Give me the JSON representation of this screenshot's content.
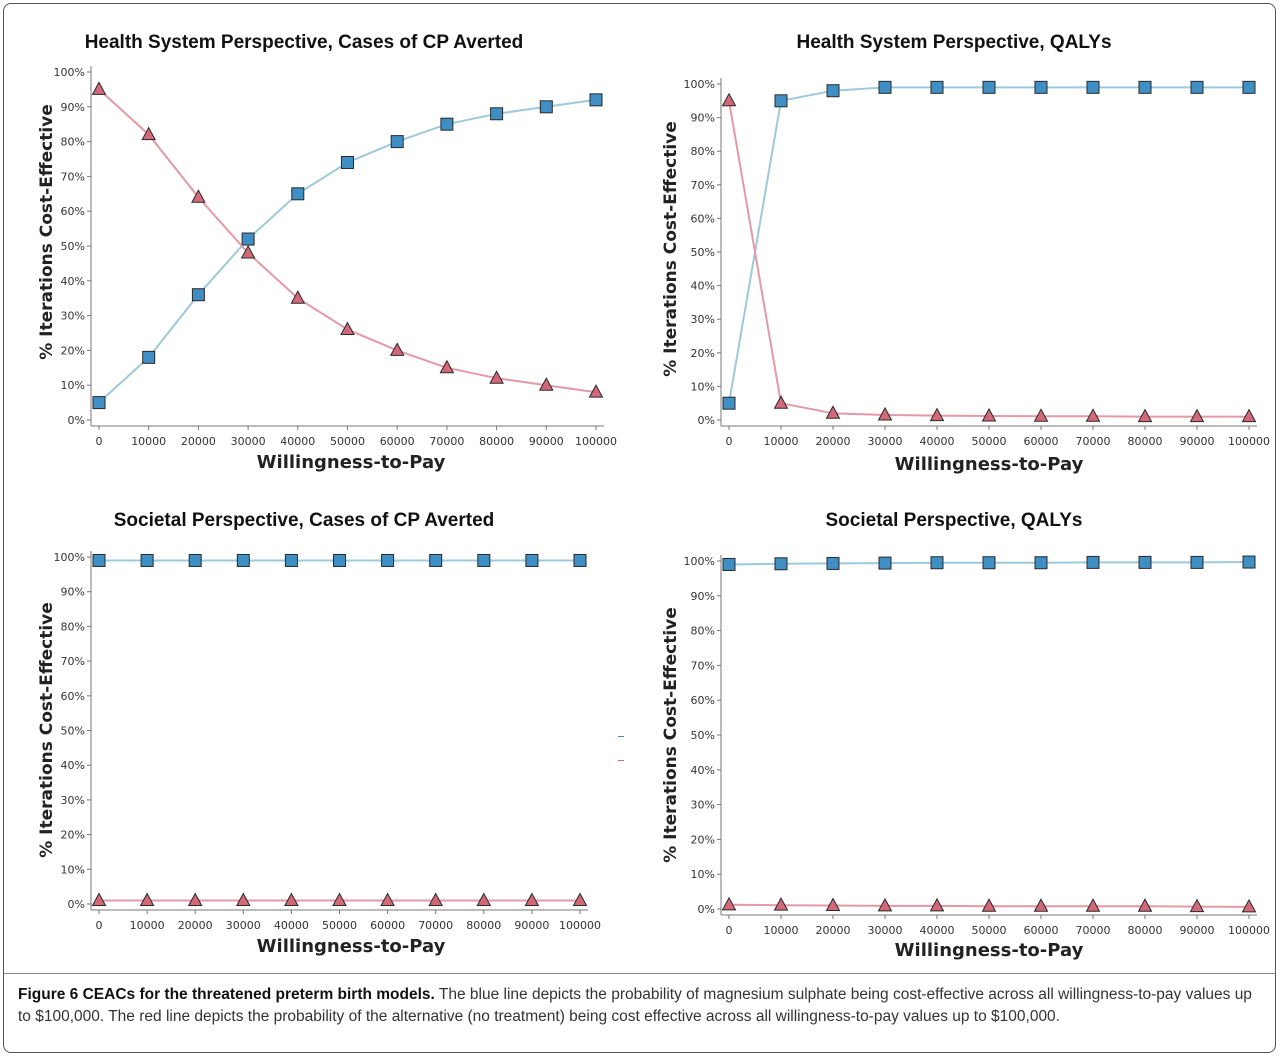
{
  "colors": {
    "blue_line": "#9ec9dd",
    "blue_marker": "#3f8fc4",
    "red_line": "#e39aa5",
    "red_marker": "#d2687a",
    "marker_stroke": "#2a2a2a",
    "axis": "#777777"
  },
  "chart_data": [
    {
      "type": "line",
      "title": "Health System Perspective, Cases of CP Averted",
      "xlabel": "Willingness-to-Pay",
      "ylabel": "% Iterations Cost-Effective",
      "x": [
        0,
        10000,
        20000,
        30000,
        40000,
        50000,
        60000,
        70000,
        80000,
        90000,
        100000
      ],
      "ylim": [
        0,
        100
      ],
      "yticks": [
        "0%",
        "10%",
        "20%",
        "30%",
        "40%",
        "50%",
        "60%",
        "70%",
        "80%",
        "90%",
        "100%"
      ],
      "xticks": [
        "0",
        "10000",
        "20000",
        "30000",
        "40000",
        "50000",
        "60000",
        "70000",
        "80000",
        "90000",
        "100000"
      ],
      "series": [
        {
          "color": "blue",
          "marker": "square",
          "values": [
            5,
            18,
            36,
            52,
            65,
            74,
            80,
            85,
            88,
            90,
            92
          ]
        },
        {
          "color": "red",
          "marker": "triangle",
          "values": [
            95,
            82,
            64,
            48,
            35,
            26,
            20,
            15,
            12,
            10,
            8
          ]
        }
      ]
    },
    {
      "type": "line",
      "title": "Health System Perspective, QALYs",
      "xlabel": "Willingness-to-Pay",
      "ylabel": "% Iterations Cost-Effective",
      "x": [
        0,
        10000,
        20000,
        30000,
        40000,
        50000,
        60000,
        70000,
        80000,
        90000,
        100000
      ],
      "ylim": [
        0,
        100
      ],
      "yticks": [
        "0%",
        "10%",
        "20%",
        "30%",
        "40%",
        "50%",
        "60%",
        "70%",
        "80%",
        "90%",
        "100%"
      ],
      "xticks": [
        "0",
        "10000",
        "20000",
        "30000",
        "40000",
        "50000",
        "60000",
        "70000",
        "80000",
        "90000",
        "100000"
      ],
      "series": [
        {
          "color": "blue",
          "marker": "square",
          "values": [
            5,
            95,
            98,
            99,
            99,
            99,
            99,
            99,
            99,
            99,
            99
          ]
        },
        {
          "color": "red",
          "marker": "triangle",
          "values": [
            95,
            5,
            2,
            1.5,
            1.3,
            1.2,
            1.1,
            1.1,
            1,
            1,
            1
          ]
        }
      ]
    },
    {
      "type": "line",
      "title": "Societal Perspective, Cases of CP Averted",
      "xlabel": "Willingness-to-Pay",
      "ylabel": "% Iterations Cost-Effective",
      "x": [
        0,
        10000,
        20000,
        30000,
        40000,
        50000,
        60000,
        70000,
        80000,
        90000,
        100000
      ],
      "ylim": [
        0,
        100
      ],
      "yticks": [
        "0%",
        "10%",
        "20%",
        "30%",
        "40%",
        "50%",
        "60%",
        "70%",
        "80%",
        "90%",
        "100%"
      ],
      "xticks": [
        "0",
        "10000",
        "20000",
        "30000",
        "40000",
        "50000",
        "60000",
        "70000",
        "80000",
        "90000",
        "100000"
      ],
      "series": [
        {
          "color": "blue",
          "marker": "square",
          "values": [
            99,
            99,
            99,
            99,
            99,
            99,
            99,
            99,
            99,
            99,
            99
          ]
        },
        {
          "color": "red",
          "marker": "triangle",
          "values": [
            1,
            1,
            1,
            1,
            1,
            1,
            1,
            1,
            1,
            1,
            1
          ]
        }
      ]
    },
    {
      "type": "line",
      "title": "Societal Perspective, QALYs",
      "xlabel": "Willingness-to-Pay",
      "ylabel": "% Iterations Cost-Effective",
      "x": [
        0,
        10000,
        20000,
        30000,
        40000,
        50000,
        60000,
        70000,
        80000,
        90000,
        100000
      ],
      "ylim": [
        0,
        100
      ],
      "yticks": [
        "0%",
        "10%",
        "20%",
        "30%",
        "40%",
        "50%",
        "60%",
        "70%",
        "80%",
        "90%",
        "100%"
      ],
      "xticks": [
        "0",
        "10000",
        "20000",
        "30000",
        "40000",
        "50000",
        "60000",
        "70000",
        "80000",
        "90000",
        "100000"
      ],
      "series": [
        {
          "color": "blue",
          "marker": "square",
          "values": [
            99,
            99.2,
            99.3,
            99.4,
            99.5,
            99.5,
            99.5,
            99.6,
            99.6,
            99.6,
            99.7
          ]
        },
        {
          "color": "red",
          "marker": "triangle",
          "values": [
            1.2,
            1.1,
            1,
            0.9,
            0.9,
            0.8,
            0.8,
            0.8,
            0.8,
            0.7,
            0.6
          ]
        }
      ]
    }
  ],
  "caption": {
    "label": "Figure 6 CEACs for the threatened preterm birth models.",
    "text": " The blue line depicts the probability of magnesium sulphate being cost-effective across all willingness-to-pay values up to $100,000. The red line depicts the probability of the alternative (no treatment) being cost effective across all willingness-to-pay values up to $100,000."
  }
}
